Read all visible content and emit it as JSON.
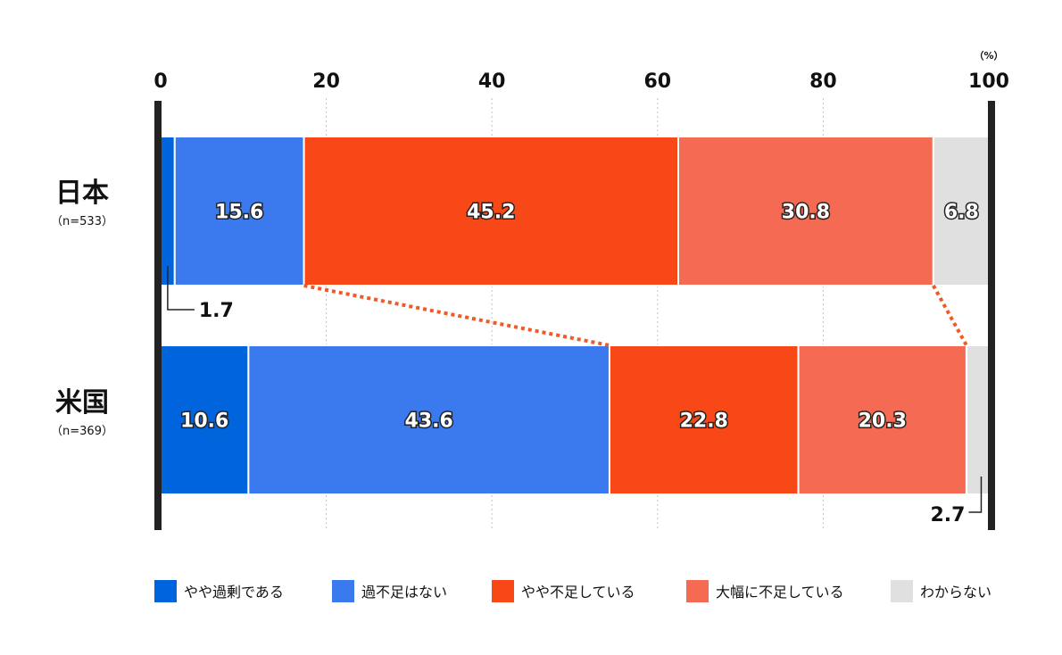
{
  "chart_data": {
    "type": "bar",
    "orientation": "horizontal",
    "stacked": true,
    "unit": "（%）",
    "xlim": [
      0,
      100
    ],
    "xticks": [
      "0",
      "20",
      "40",
      "60",
      "80",
      "100"
    ],
    "grid": true,
    "legend_position": "bottom",
    "categories": [
      {
        "name": "日本",
        "sub": "（n=533）"
      },
      {
        "name": "米国",
        "sub": "（n=369）"
      }
    ],
    "series": [
      {
        "name": "やや過剰である",
        "color": "#0064dc",
        "values": [
          1.7,
          10.6
        ]
      },
      {
        "name": "過不足はない",
        "color": "#3a7aee",
        "values": [
          15.6,
          43.6
        ]
      },
      {
        "name": "やや不足している",
        "color": "#f84818",
        "values": [
          45.2,
          22.8
        ]
      },
      {
        "name": "大幅に不足している",
        "color": "#f46a52",
        "values": [
          30.8,
          20.3
        ]
      },
      {
        "name": "わからない",
        "color": "#e0e0e0",
        "values": [
          6.8,
          2.7
        ]
      }
    ],
    "value_labels": [
      [
        "1.7",
        "15.6",
        "45.2",
        "30.8",
        "6.8"
      ],
      [
        "10.6",
        "43.6",
        "22.8",
        "20.3",
        "2.7"
      ]
    ]
  }
}
